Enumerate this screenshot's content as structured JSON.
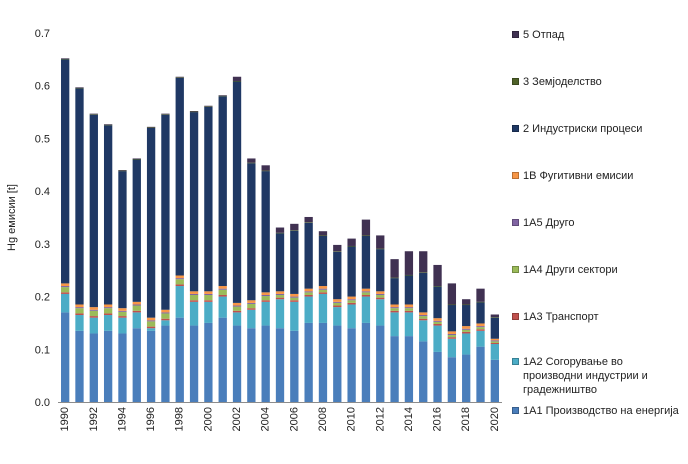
{
  "chart_data": {
    "type": "bar",
    "stacked": true,
    "title": "",
    "xlabel": "",
    "ylabel": "Hg емисии [t]",
    "ylim": [
      0,
      0.7
    ],
    "yticks": [
      "0.0",
      "0.1",
      "0.2",
      "0.3",
      "0.4",
      "0.5",
      "0.6",
      "0.7"
    ],
    "grid": false,
    "legend_position": "right",
    "categories": [
      "1990",
      "1991",
      "1992",
      "1993",
      "1994",
      "1995",
      "1996",
      "1997",
      "1998",
      "1999",
      "2000",
      "2001",
      "2002",
      "2003",
      "2004",
      "2005",
      "2006",
      "2007",
      "2008",
      "2009",
      "2010",
      "2011",
      "2012",
      "2013",
      "2014",
      "2015",
      "2016",
      "2017",
      "2018",
      "2019",
      "2020"
    ],
    "xtick_labels": [
      "1990",
      "1992",
      "1994",
      "1996",
      "1998",
      "2000",
      "2002",
      "2004",
      "2006",
      "2008",
      "2010",
      "2012",
      "2014",
      "2016",
      "2018",
      "2020"
    ],
    "series": [
      {
        "name": "1А1 Производство на енергија",
        "color": "#4a7ebb",
        "values": [
          0.17,
          0.135,
          0.13,
          0.135,
          0.13,
          0.14,
          0.135,
          0.145,
          0.16,
          0.145,
          0.15,
          0.16,
          0.145,
          0.14,
          0.145,
          0.14,
          0.135,
          0.15,
          0.15,
          0.145,
          0.14,
          0.15,
          0.145,
          0.125,
          0.125,
          0.115,
          0.095,
          0.085,
          0.09,
          0.105,
          0.08
        ]
      },
      {
        "name": "1А2 Согорување во\nпроизводни индустрии и\nградежништво",
        "color": "#4bacc6",
        "values": [
          0.035,
          0.03,
          0.03,
          0.03,
          0.03,
          0.03,
          0.005,
          0.01,
          0.06,
          0.045,
          0.04,
          0.04,
          0.025,
          0.035,
          0.045,
          0.055,
          0.055,
          0.05,
          0.055,
          0.035,
          0.045,
          0.05,
          0.05,
          0.045,
          0.045,
          0.04,
          0.05,
          0.035,
          0.04,
          0.03,
          0.03
        ]
      },
      {
        "name": "1А3 Транспорт",
        "color": "#c0504d",
        "values": [
          0.003,
          0.003,
          0.003,
          0.003,
          0.003,
          0.003,
          0.003,
          0.003,
          0.003,
          0.003,
          0.003,
          0.003,
          0.003,
          0.003,
          0.003,
          0.003,
          0.003,
          0.003,
          0.003,
          0.003,
          0.003,
          0.003,
          0.003,
          0.003,
          0.003,
          0.003,
          0.003,
          0.003,
          0.003,
          0.003,
          0.002
        ]
      },
      {
        "name": "1А4 Други сектори",
        "color": "#9bbb59",
        "values": [
          0.01,
          0.01,
          0.01,
          0.01,
          0.008,
          0.01,
          0.01,
          0.01,
          0.01,
          0.01,
          0.01,
          0.01,
          0.008,
          0.008,
          0.008,
          0.005,
          0.005,
          0.005,
          0.005,
          0.005,
          0.005,
          0.005,
          0.005,
          0.005,
          0.005,
          0.005,
          0.004,
          0.004,
          0.004,
          0.004,
          0.003
        ]
      },
      {
        "name": "1А5 Друго",
        "color": "#8064a2",
        "values": [
          0.002,
          0.002,
          0.002,
          0.002,
          0.002,
          0.002,
          0.002,
          0.002,
          0.002,
          0.002,
          0.002,
          0.002,
          0.002,
          0.002,
          0.002,
          0.002,
          0.002,
          0.002,
          0.002,
          0.002,
          0.002,
          0.002,
          0.002,
          0.002,
          0.002,
          0.002,
          0.002,
          0.002,
          0.002,
          0.002,
          0.002
        ]
      },
      {
        "name": "1В Фугитивни  емисии",
        "color": "#f79646",
        "values": [
          0.005,
          0.005,
          0.005,
          0.005,
          0.005,
          0.005,
          0.005,
          0.005,
          0.005,
          0.005,
          0.005,
          0.005,
          0.005,
          0.005,
          0.005,
          0.005,
          0.005,
          0.005,
          0.005,
          0.005,
          0.005,
          0.005,
          0.005,
          0.005,
          0.005,
          0.005,
          0.005,
          0.005,
          0.005,
          0.005,
          0.003
        ]
      },
      {
        "name": "2 Индустриски процеси",
        "color": "#1f3864",
        "values": [
          0.425,
          0.41,
          0.365,
          0.34,
          0.26,
          0.27,
          0.36,
          0.37,
          0.375,
          0.34,
          0.35,
          0.36,
          0.42,
          0.26,
          0.23,
          0.11,
          0.12,
          0.125,
          0.095,
          0.09,
          0.095,
          0.1,
          0.08,
          0.05,
          0.055,
          0.075,
          0.06,
          0.05,
          0.04,
          0.04,
          0.04
        ]
      },
      {
        "name": "3 Земјоделство",
        "color": "#4f6228",
        "values": [
          0.001,
          0.001,
          0.001,
          0.001,
          0.001,
          0.001,
          0.001,
          0.001,
          0.001,
          0.001,
          0.001,
          0.001,
          0.001,
          0.001,
          0.001,
          0.001,
          0.001,
          0.001,
          0.001,
          0.001,
          0.001,
          0.001,
          0.001,
          0.001,
          0.001,
          0.001,
          0.001,
          0.001,
          0.001,
          0.001,
          0.001
        ]
      },
      {
        "name": "5 Отпад",
        "color": "#403152",
        "values": [
          0.001,
          0.001,
          0.001,
          0.001,
          0.001,
          0.001,
          0.001,
          0.001,
          0.001,
          0.001,
          0.001,
          0.001,
          0.008,
          0.008,
          0.01,
          0.01,
          0.012,
          0.01,
          0.008,
          0.012,
          0.014,
          0.03,
          0.025,
          0.035,
          0.045,
          0.04,
          0.04,
          0.04,
          0.01,
          0.025,
          0.005
        ]
      }
    ]
  }
}
